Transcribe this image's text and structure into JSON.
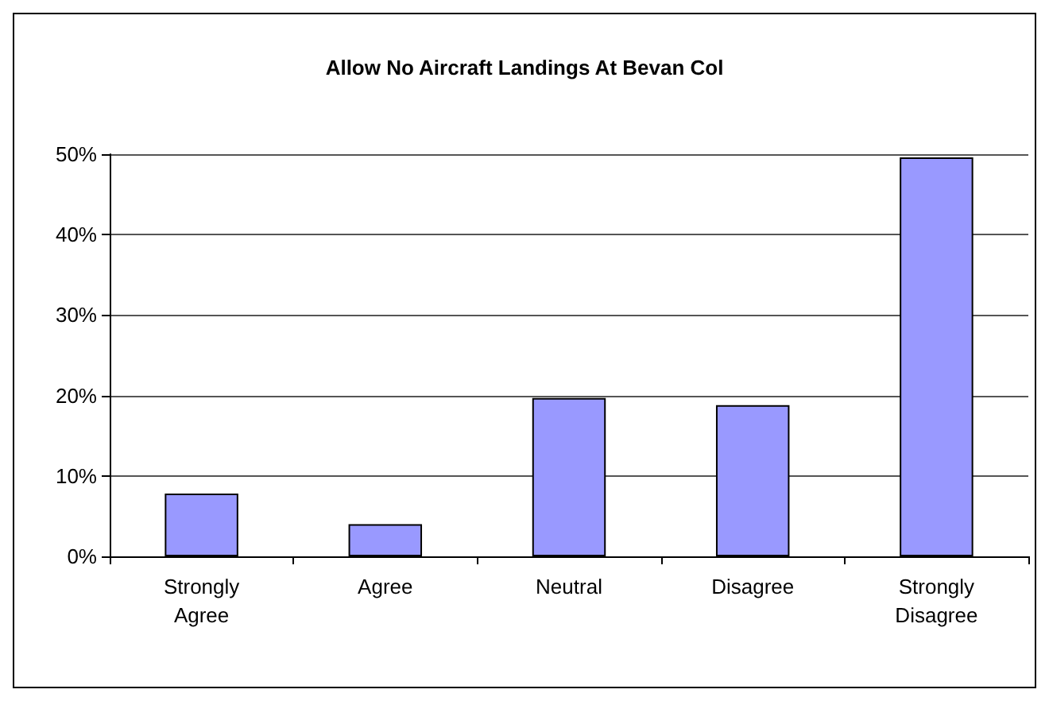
{
  "chart_data": {
    "type": "bar",
    "title": "Allow No Aircraft Landings At Bevan Col",
    "categories": [
      "Strongly\nAgree",
      "Agree",
      "Neutral",
      "Disagree",
      "Strongly\nDisagree"
    ],
    "values": [
      7.8,
      4,
      19.7,
      18.8,
      49.6
    ],
    "color": "#9999ff",
    "ylim": [
      0,
      50
    ],
    "yticks": [
      {
        "value": 0,
        "label": "0%"
      },
      {
        "value": 10,
        "label": "10%"
      },
      {
        "value": 20,
        "label": "20%"
      },
      {
        "value": 30,
        "label": "30%"
      },
      {
        "value": 40,
        "label": "40%"
      },
      {
        "value": 50,
        "label": "50%"
      }
    ],
    "grid": true
  }
}
